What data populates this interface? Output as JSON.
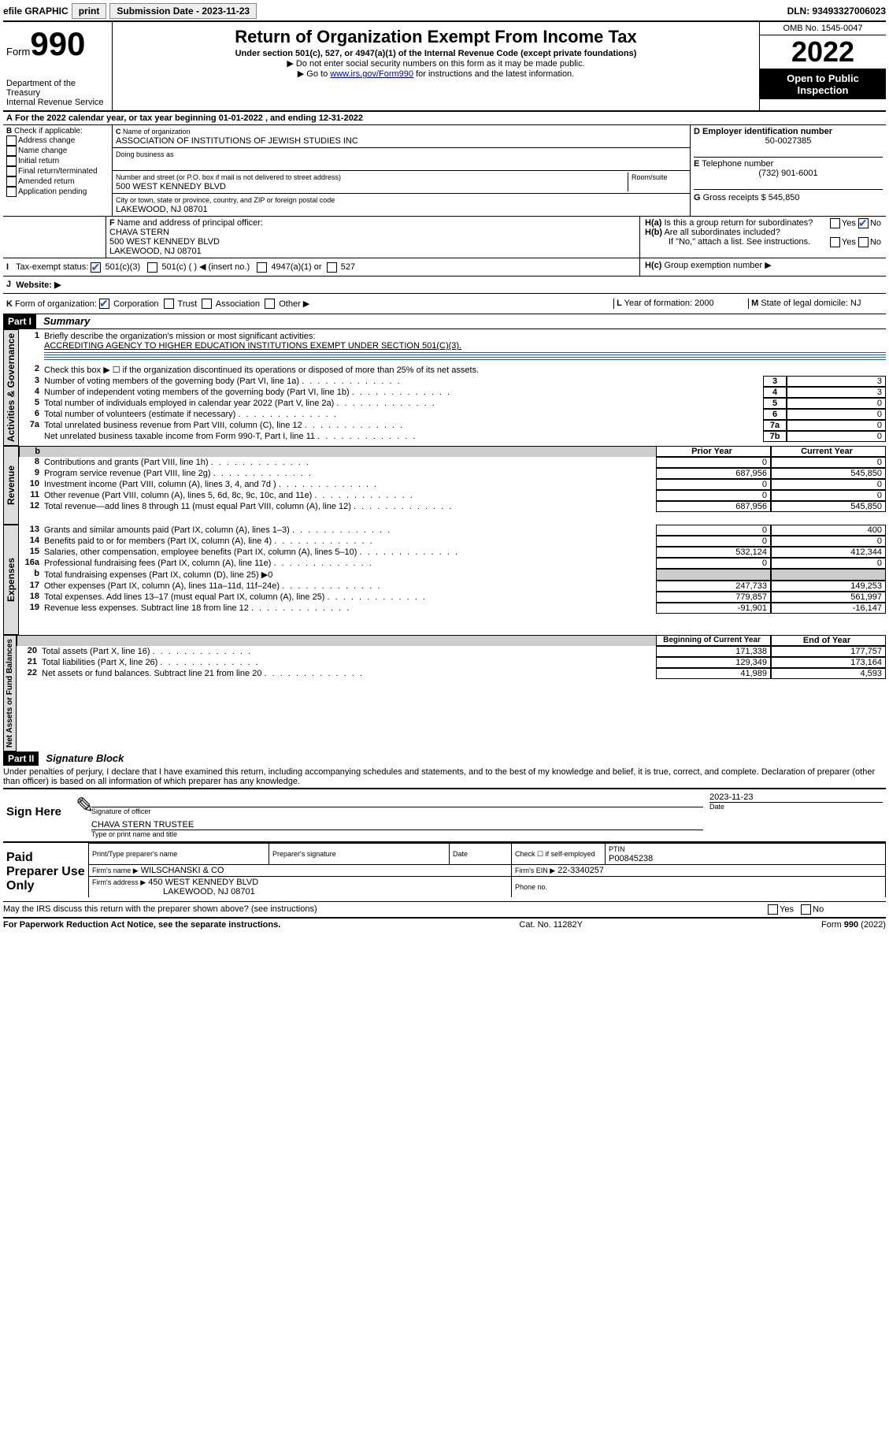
{
  "topbar": {
    "efile": "efile GRAPHIC",
    "print": "print",
    "subdate_lbl": "Submission Date - 2023-11-23",
    "dln": "DLN: 93493327006023"
  },
  "header": {
    "form_prefix": "Form",
    "form_num": "990",
    "dept": "Department of the Treasury",
    "irs": "Internal Revenue Service",
    "title": "Return of Organization Exempt From Income Tax",
    "sub1": "Under section 501(c), 527, or 4947(a)(1) of the Internal Revenue Code (except private foundations)",
    "sub2": "▶ Do not enter social security numbers on this form as it may be made public.",
    "sub3_pre": "▶ Go to ",
    "sub3_link": "www.irs.gov/Form990",
    "sub3_post": " for instructions and the latest information.",
    "omb": "OMB No. 1545-0047",
    "year": "2022",
    "inspection": "Open to Public Inspection"
  },
  "A": {
    "line": "For the 2022 calendar year, or tax year beginning 01-01-2022   , and ending 12-31-2022"
  },
  "B": {
    "label": "Check if applicable:",
    "items": [
      "Address change",
      "Name change",
      "Initial return",
      "Final return/terminated",
      "Amended return",
      "Application pending"
    ]
  },
  "C": {
    "name_lbl": "Name of organization",
    "name": "ASSOCIATION OF INSTITUTIONS OF JEWISH STUDIES INC",
    "dba_lbl": "Doing business as",
    "dba": "",
    "street_lbl": "Number and street (or P.O. box if mail is not delivered to street address)",
    "room_lbl": "Room/suite",
    "street": "500 WEST KENNEDY BLVD",
    "city_lbl": "City or town, state or province, country, and ZIP or foreign postal code",
    "city": "LAKEWOOD, NJ  08701"
  },
  "D": {
    "lbl": "Employer identification number",
    "val": "50-0027385"
  },
  "E": {
    "lbl": "Telephone number",
    "val": "(732) 901-6001"
  },
  "G": {
    "lbl": "Gross receipts $",
    "val": "545,850"
  },
  "F": {
    "lbl": "Name and address of principal officer:",
    "name": "CHAVA STERN",
    "addr1": "500 WEST KENNEDY BLVD",
    "addr2": "LAKEWOOD, NJ  08701"
  },
  "H": {
    "a": "Is this a group return for subordinates?",
    "b": "Are all subordinates included?",
    "note": "If \"No,\" attach a list. See instructions.",
    "c": "Group exemption number ▶",
    "yes": "Yes",
    "no": "No"
  },
  "I": {
    "lbl": "Tax-exempt status:",
    "o1": "501(c)(3)",
    "o2": "501(c) (  ) ◀ (insert no.)",
    "o3": "4947(a)(1) or",
    "o4": "527"
  },
  "J": {
    "lbl": "Website: ▶"
  },
  "K": {
    "lbl": "Form of organization:",
    "o1": "Corporation",
    "o2": "Trust",
    "o3": "Association",
    "o4": "Other ▶"
  },
  "L": {
    "lbl": "Year of formation:",
    "val": "2000"
  },
  "M": {
    "lbl": "State of legal domicile:",
    "val": "NJ"
  },
  "part1": {
    "hdr": "Part I",
    "title": "Summary",
    "l1_lbl": "Briefly describe the organization's mission or most significant activities:",
    "l1_val": "ACCREDITING AGENCY TO HIGHER EDUCATION INSTITUTIONS EXEMPT UNDER SECTION 501(C)(3).",
    "l2": "Check this box ▶ ☐  if the organization discontinued its operations or disposed of more than 25% of its net assets.",
    "sections": {
      "gov": "Activities & Governance",
      "rev": "Revenue",
      "exp": "Expenses",
      "net": "Net Assets or Fund Balances"
    },
    "gov_lines": [
      {
        "n": "3",
        "t": "Number of voting members of the governing body (Part VI, line 1a)",
        "k": "3",
        "v": "3"
      },
      {
        "n": "4",
        "t": "Number of independent voting members of the governing body (Part VI, line 1b)",
        "k": "4",
        "v": "3"
      },
      {
        "n": "5",
        "t": "Total number of individuals employed in calendar year 2022 (Part V, line 2a)",
        "k": "5",
        "v": "0"
      },
      {
        "n": "6",
        "t": "Total number of volunteers (estimate if necessary)",
        "k": "6",
        "v": "0"
      },
      {
        "n": "7a",
        "t": "Total unrelated business revenue from Part VIII, column (C), line 12",
        "k": "7a",
        "v": "0"
      },
      {
        "n": "",
        "t": "Net unrelated business taxable income from Form 990-T, Part I, line 11",
        "k": "7b",
        "v": "0"
      }
    ],
    "col_hdr_prior": "Prior Year",
    "col_hdr_curr": "Current Year",
    "two_col_lines": [
      {
        "sec": "rev",
        "n": "8",
        "t": "Contributions and grants (Part VIII, line 1h)",
        "p": "0",
        "c": "0"
      },
      {
        "sec": "rev",
        "n": "9",
        "t": "Program service revenue (Part VIII, line 2g)",
        "p": "687,956",
        "c": "545,850"
      },
      {
        "sec": "rev",
        "n": "10",
        "t": "Investment income (Part VIII, column (A), lines 3, 4, and 7d )",
        "p": "0",
        "c": "0"
      },
      {
        "sec": "rev",
        "n": "11",
        "t": "Other revenue (Part VIII, column (A), lines 5, 6d, 8c, 9c, 10c, and 11e)",
        "p": "0",
        "c": "0"
      },
      {
        "sec": "rev",
        "n": "12",
        "t": "Total revenue—add lines 8 through 11 (must equal Part VIII, column (A), line 12)",
        "p": "687,956",
        "c": "545,850"
      },
      {
        "sec": "exp",
        "n": "13",
        "t": "Grants and similar amounts paid (Part IX, column (A), lines 1–3)",
        "p": "0",
        "c": "400"
      },
      {
        "sec": "exp",
        "n": "14",
        "t": "Benefits paid to or for members (Part IX, column (A), line 4)",
        "p": "0",
        "c": "0"
      },
      {
        "sec": "exp",
        "n": "15",
        "t": "Salaries, other compensation, employee benefits (Part IX, column (A), lines 5–10)",
        "p": "532,124",
        "c": "412,344"
      },
      {
        "sec": "exp",
        "n": "16a",
        "t": "Professional fundraising fees (Part IX, column (A), line 11e)",
        "p": "0",
        "c": "0"
      },
      {
        "sec": "exp",
        "n": "b",
        "t": "Total fundraising expenses (Part IX, column (D), line 25) ▶0",
        "p": "",
        "c": ""
      },
      {
        "sec": "exp",
        "n": "17",
        "t": "Other expenses (Part IX, column (A), lines 11a–11d, 11f–24e)",
        "p": "247,733",
        "c": "149,253"
      },
      {
        "sec": "exp",
        "n": "18",
        "t": "Total expenses. Add lines 13–17 (must equal Part IX, column (A), line 25)",
        "p": "779,857",
        "c": "561,997"
      },
      {
        "sec": "exp",
        "n": "19",
        "t": "Revenue less expenses. Subtract line 18 from line 12",
        "p": "-91,901",
        "c": "-16,147"
      }
    ],
    "col_hdr_beg": "Beginning of Current Year",
    "col_hdr_end": "End of Year",
    "net_lines": [
      {
        "n": "20",
        "t": "Total assets (Part X, line 16)",
        "p": "171,338",
        "c": "177,757"
      },
      {
        "n": "21",
        "t": "Total liabilities (Part X, line 26)",
        "p": "129,349",
        "c": "173,164"
      },
      {
        "n": "22",
        "t": "Net assets or fund balances. Subtract line 21 from line 20",
        "p": "41,989",
        "c": "4,593"
      }
    ]
  },
  "part2": {
    "hdr": "Part II",
    "title": "Signature Block",
    "decl": "Under penalties of perjury, I declare that I have examined this return, including accompanying schedules and statements, and to the best of my knowledge and belief, it is true, correct, and complete. Declaration of preparer (other than officer) is based on all information of which preparer has any knowledge.",
    "sign_here": "Sign Here",
    "sig_officer": "Signature of officer",
    "date_lbl": "Date",
    "date_val": "2023-11-23",
    "name_title": "CHAVA STERN  TRUSTEE",
    "name_title_lbl": "Type or print name and title",
    "paid": "Paid Preparer Use Only",
    "prep_name_lbl": "Print/Type preparer's name",
    "prep_sig_lbl": "Preparer's signature",
    "check_self": "Check ☐ if self-employed",
    "ptin_lbl": "PTIN",
    "ptin": "P00845238",
    "firm_name_lbl": "Firm's name   ▶",
    "firm_name": "WILSCHANSKI & CO",
    "firm_ein_lbl": "Firm's EIN ▶",
    "firm_ein": "22-3340257",
    "firm_addr_lbl": "Firm's address ▶",
    "firm_addr1": "450 WEST KENNEDY BLVD",
    "firm_addr2": "LAKEWOOD, NJ  08701",
    "phone_lbl": "Phone no.",
    "discuss": "May the IRS discuss this return with the preparer shown above? (see instructions)"
  },
  "footer": {
    "left": "For Paperwork Reduction Act Notice, see the separate instructions.",
    "mid": "Cat. No. 11282Y",
    "right": "Form 990 (2022)"
  }
}
